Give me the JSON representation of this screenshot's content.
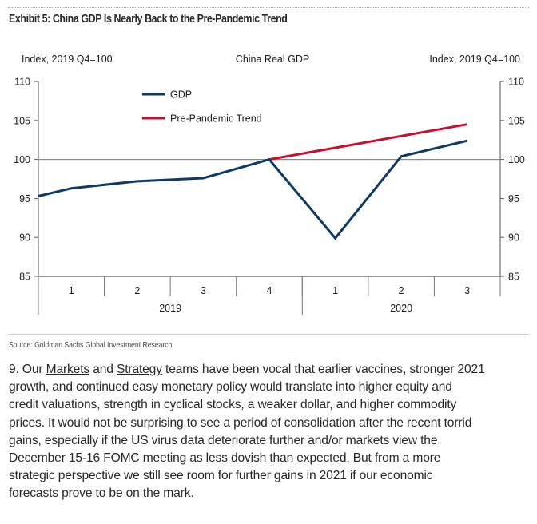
{
  "header": {
    "exhibit_title": "Exhibit 5: China GDP Is Nearly Back to the Pre-Pandemic Trend"
  },
  "chart_data": {
    "type": "line",
    "title": "China Real GDP",
    "ylabel_left": "Index, 2019 Q4=100",
    "ylabel_right": "Index, 2019 Q4=100",
    "ylim": [
      85,
      110
    ],
    "yticks": [
      85,
      90,
      95,
      100,
      105,
      110
    ],
    "reference_line": 100,
    "categories": [
      "1",
      "2",
      "3",
      "4",
      "1",
      "2",
      "3"
    ],
    "category_groups": [
      {
        "label": "2019",
        "span": 4
      },
      {
        "label": "2020",
        "span": 3
      }
    ],
    "legend_position": "top-center",
    "series": [
      {
        "name": "GDP",
        "color": "#0f3a68",
        "values": [
          96.3,
          97.2,
          97.6,
          100.0,
          89.9,
          100.4,
          102.4
        ],
        "left_edge_value": 95.3
      },
      {
        "name": "Pre-Pandemic Trend",
        "color": "#c8102e",
        "values": [
          null,
          null,
          null,
          100.0,
          101.5,
          103.0,
          104.5
        ]
      }
    ]
  },
  "footer": {
    "source": "Source: Goldman Sachs Global Investment Research"
  },
  "paragraph": {
    "lines": [
      {
        "parts": [
          {
            "text": "9. Our "
          },
          {
            "text": "Markets",
            "link": true
          },
          {
            "text": " and "
          },
          {
            "text": "Strategy",
            "link": true
          },
          {
            "text": " teams have been vocal that earlier vaccines, stronger 2021"
          }
        ]
      },
      {
        "parts": [
          {
            "text": "growth, and continued easy monetary policy would translate into higher equity and"
          }
        ]
      },
      {
        "parts": [
          {
            "text": "credit valuations, strength in cyclical stocks, a weaker dollar, and higher commodity"
          }
        ]
      },
      {
        "parts": [
          {
            "text": "prices.  It would not be surprising to see a period of consolidation after the recent torrid"
          }
        ]
      },
      {
        "parts": [
          {
            "text": "gains, especially if the US virus data deteriorate further and/or markets view the"
          }
        ]
      },
      {
        "parts": [
          {
            "text": "December 15-16 FOMC meeting as less dovish than expected.  But from a more"
          }
        ]
      },
      {
        "parts": [
          {
            "text": "strategic perspective we still see room for further gains in 2021 if our economic"
          }
        ]
      },
      {
        "parts": [
          {
            "text": "forecasts prove to be on the mark."
          }
        ]
      }
    ]
  }
}
